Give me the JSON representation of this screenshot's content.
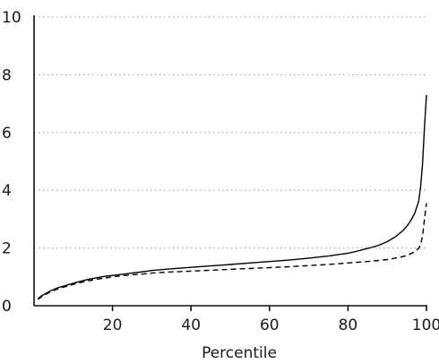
{
  "chart_data": {
    "type": "line",
    "xlabel": "Percentile",
    "ylabel": "",
    "xlim": [
      0,
      100
    ],
    "ylim": [
      0,
      10
    ],
    "x_ticks": [
      20,
      40,
      60,
      80,
      100
    ],
    "y_ticks": [
      0,
      2,
      4,
      6,
      8,
      10
    ],
    "x_tick_labels": [
      "20",
      "40",
      "60",
      "80",
      "100"
    ],
    "y_tick_labels": [
      "0",
      "2",
      "4",
      "6",
      "8",
      "10"
    ],
    "grid": "horizontal dotted",
    "series": [
      {
        "style": "solid",
        "x": [
          1,
          2,
          4,
          6,
          8,
          10,
          12,
          14,
          16,
          18,
          20,
          22,
          25,
          28,
          30,
          35,
          40,
          45,
          50,
          55,
          60,
          65,
          70,
          75,
          80,
          82,
          84,
          86,
          88,
          90,
          92,
          94,
          95,
          96,
          97,
          98,
          98.5,
          99,
          99.5,
          100
        ],
        "y": [
          0.25,
          0.35,
          0.5,
          0.62,
          0.7,
          0.78,
          0.85,
          0.92,
          0.97,
          1.02,
          1.05,
          1.08,
          1.13,
          1.18,
          1.22,
          1.28,
          1.33,
          1.38,
          1.43,
          1.48,
          1.53,
          1.58,
          1.65,
          1.72,
          1.82,
          1.88,
          1.95,
          2.02,
          2.1,
          2.22,
          2.38,
          2.6,
          2.75,
          2.95,
          3.2,
          3.6,
          4.1,
          4.9,
          6.2,
          7.3
        ]
      },
      {
        "style": "dashed",
        "x": [
          1,
          2,
          4,
          6,
          8,
          10,
          12,
          14,
          16,
          18,
          20,
          22,
          25,
          28,
          30,
          35,
          40,
          45,
          50,
          55,
          60,
          65,
          70,
          75,
          80,
          85,
          90,
          93,
          95,
          96,
          97,
          98,
          98.5,
          99,
          99.5,
          100
        ],
        "y": [
          0.22,
          0.32,
          0.47,
          0.58,
          0.66,
          0.74,
          0.81,
          0.87,
          0.92,
          0.96,
          1.0,
          1.03,
          1.07,
          1.1,
          1.13,
          1.17,
          1.2,
          1.23,
          1.26,
          1.29,
          1.32,
          1.35,
          1.39,
          1.43,
          1.48,
          1.53,
          1.6,
          1.67,
          1.74,
          1.8,
          1.87,
          1.98,
          2.12,
          2.4,
          3.0,
          3.55
        ]
      }
    ]
  }
}
